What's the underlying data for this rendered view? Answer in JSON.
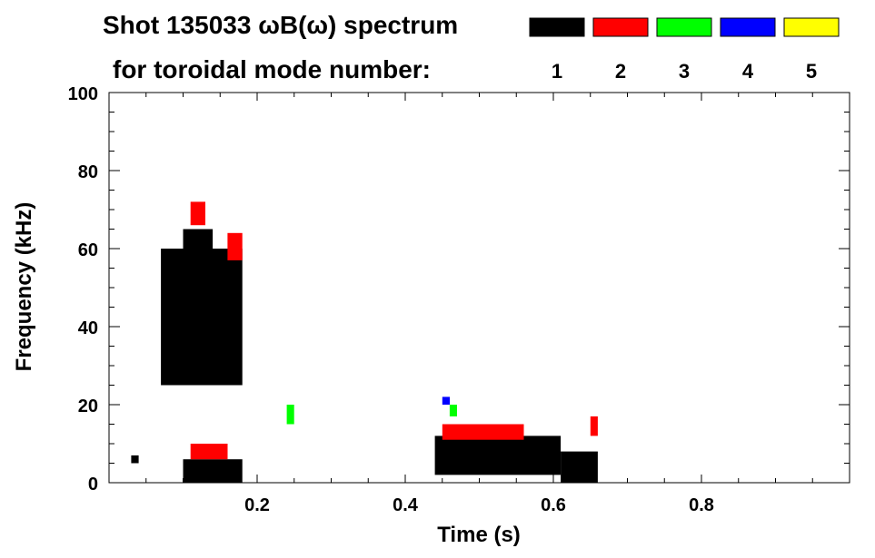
{
  "chart_data": {
    "type": "heatmap",
    "title": "Shot 135033 ωB(ω) spectrum",
    "subtitle": "for toroidal mode number:",
    "xlabel": "Time (s)",
    "ylabel": "Frequency (kHz)",
    "xlim": [
      0.0,
      1.0
    ],
    "ylim": [
      0,
      100
    ],
    "x_ticks": [
      0.2,
      0.4,
      0.6,
      0.8
    ],
    "x_tick_labels": [
      "0.2",
      "0.4",
      "0.6",
      "0.8"
    ],
    "y_ticks": [
      0,
      20,
      40,
      60,
      80,
      100
    ],
    "y_tick_labels": [
      "0",
      "20",
      "40",
      "60",
      "80",
      "100"
    ],
    "legend_position": "top-right",
    "modes": [
      {
        "label": "1",
        "color": "#000000"
      },
      {
        "label": "2",
        "color": "#ff0000"
      },
      {
        "label": "3",
        "color": "#00ff00"
      },
      {
        "label": "4",
        "color": "#0000ff"
      },
      {
        "label": "5",
        "color": "#ffff00"
      }
    ],
    "regions": [
      {
        "mode": "1",
        "t": [
          0.07,
          0.18
        ],
        "f": [
          25,
          60
        ]
      },
      {
        "mode": "1",
        "t": [
          0.1,
          0.14
        ],
        "f": [
          40,
          65
        ]
      },
      {
        "mode": "1",
        "t": [
          0.44,
          0.61
        ],
        "f": [
          2,
          12
        ]
      },
      {
        "mode": "1",
        "t": [
          0.61,
          0.66
        ],
        "f": [
          0,
          8
        ]
      },
      {
        "mode": "1",
        "t": [
          0.03,
          0.04
        ],
        "f": [
          5,
          7
        ]
      },
      {
        "mode": "1",
        "t": [
          0.1,
          0.18
        ],
        "f": [
          0,
          6
        ]
      },
      {
        "mode": "2",
        "t": [
          0.11,
          0.13
        ],
        "f": [
          66,
          72
        ]
      },
      {
        "mode": "2",
        "t": [
          0.16,
          0.18
        ],
        "f": [
          57,
          64
        ]
      },
      {
        "mode": "2",
        "t": [
          0.45,
          0.56
        ],
        "f": [
          11,
          15
        ]
      },
      {
        "mode": "2",
        "t": [
          0.11,
          0.16
        ],
        "f": [
          6,
          10
        ]
      },
      {
        "mode": "2",
        "t": [
          0.65,
          0.66
        ],
        "f": [
          12,
          17
        ]
      },
      {
        "mode": "3",
        "t": [
          0.46,
          0.47
        ],
        "f": [
          17,
          20
        ]
      },
      {
        "mode": "3",
        "t": [
          0.24,
          0.25
        ],
        "f": [
          15,
          20
        ]
      },
      {
        "mode": "4",
        "t": [
          0.45,
          0.46
        ],
        "f": [
          20,
          22
        ]
      }
    ]
  }
}
